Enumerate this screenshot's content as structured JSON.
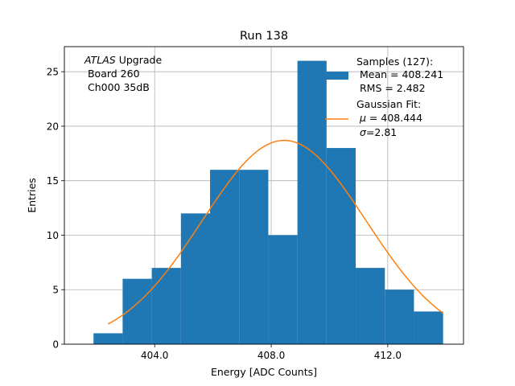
{
  "chart_data": {
    "type": "bar",
    "title": "Run 138",
    "xlabel": "Energy [ADC Counts]",
    "ylabel": "Entries",
    "xlim": [
      400.9,
      414.6
    ],
    "ylim": [
      0,
      27.3
    ],
    "grid": true,
    "x_ticks": [
      404.0,
      408.0,
      412.0
    ],
    "x_tick_labels": [
      "404.0",
      "408.0",
      "412.0"
    ],
    "y_ticks": [
      0,
      5,
      10,
      15,
      20,
      25
    ],
    "y_tick_labels": [
      "0",
      "5",
      "10",
      "15",
      "20",
      "25"
    ],
    "bar_color": "#1f77b4",
    "fit_color": "#ff7f0e",
    "bins": [
      {
        "left": 401.9,
        "right": 402.9,
        "count": 1
      },
      {
        "left": 402.9,
        "right": 403.9,
        "count": 6
      },
      {
        "left": 403.9,
        "right": 404.9,
        "count": 7
      },
      {
        "left": 404.9,
        "right": 405.9,
        "count": 12
      },
      {
        "left": 405.9,
        "right": 406.9,
        "count": 16
      },
      {
        "left": 406.9,
        "right": 407.9,
        "count": 16
      },
      {
        "left": 407.9,
        "right": 408.9,
        "count": 10
      },
      {
        "left": 408.9,
        "right": 409.9,
        "count": 26
      },
      {
        "left": 409.9,
        "right": 410.9,
        "count": 18
      },
      {
        "left": 410.9,
        "right": 411.9,
        "count": 7
      },
      {
        "left": 411.9,
        "right": 412.9,
        "count": 5
      },
      {
        "left": 412.9,
        "right": 413.9,
        "count": 3
      }
    ],
    "fit": {
      "type": "gaussian",
      "mu": 408.444,
      "sigma": 2.81,
      "amplitude": 18.7,
      "x_range": [
        402.4,
        413.9
      ]
    },
    "annotation": {
      "line1_italic": "ATLAS",
      "line1_rest": " Upgrade",
      "line2": " Board 260",
      "line3": " Ch000 35dB"
    },
    "legend": {
      "position": "top-right",
      "samples_line1": "Samples (127):",
      "samples_line2": " Mean = 408.241",
      "samples_line3": " RMS = 2.482",
      "fit_line1": "Gaussian Fit:",
      "fit_line2_symbol": "μ",
      "fit_line2_rest": " = 408.444",
      "fit_line3_symbol": "σ",
      "fit_line3_rest": "=2.81"
    }
  }
}
